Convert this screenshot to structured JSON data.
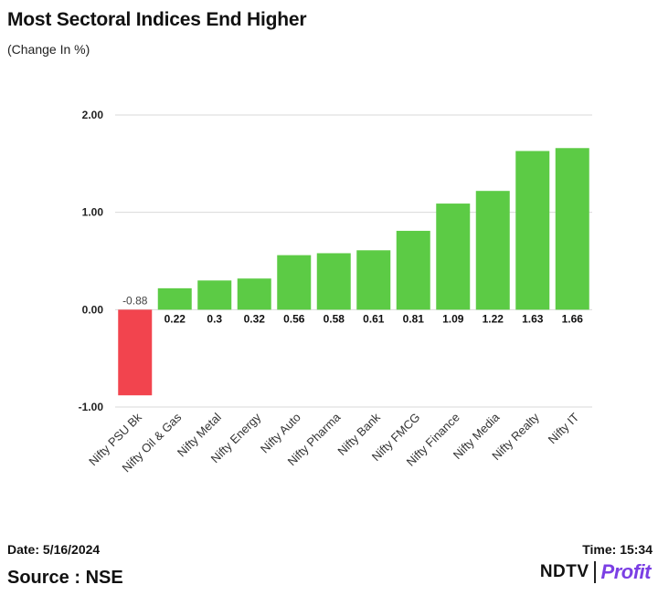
{
  "header": {
    "title": "Most Sectoral Indices End Higher",
    "subtitle": "(Change In %)"
  },
  "footer": {
    "date": "Date: 5/16/2024",
    "time": "Time: 15:34",
    "source": "Source : NSE",
    "logo_ndtv": "NDTV",
    "logo_profit": "Profit"
  },
  "colors": {
    "positive": "#5ccb45",
    "negative": "#f2444e",
    "grid": "#d9d9d9",
    "logo_accent": "#7b3fe4"
  },
  "chart_data": {
    "type": "bar",
    "categories": [
      "Nifty PSU Bk",
      "Nifty Oil & Gas",
      "Nifty Metal",
      "Nifty Energy",
      "Nifty Auto",
      "Nifty Pharma",
      "Nifty Bank",
      "Nifty FMCG",
      "Nifty Finance",
      "Nifty Media",
      "Nifty Realty",
      "Nifty IT"
    ],
    "values": [
      -0.88,
      0.22,
      0.3,
      0.32,
      0.56,
      0.58,
      0.61,
      0.81,
      1.09,
      1.22,
      1.63,
      1.66
    ],
    "value_labels": [
      "-0.88",
      "0.22",
      "0.3",
      "0.32",
      "0.56",
      "0.58",
      "0.61",
      "0.81",
      "1.09",
      "1.22",
      "1.63",
      "1.66"
    ],
    "title": "Most Sectoral Indices End Higher",
    "subtitle": "(Change In %)",
    "xlabel": "",
    "ylabel": "",
    "ylim": [
      -1,
      2
    ],
    "yticks": [
      2,
      1,
      0,
      -1
    ],
    "ytick_labels": [
      "2.00",
      "1.00",
      "0.00",
      "-1.00"
    ],
    "grid": true,
    "legend": "none"
  }
}
